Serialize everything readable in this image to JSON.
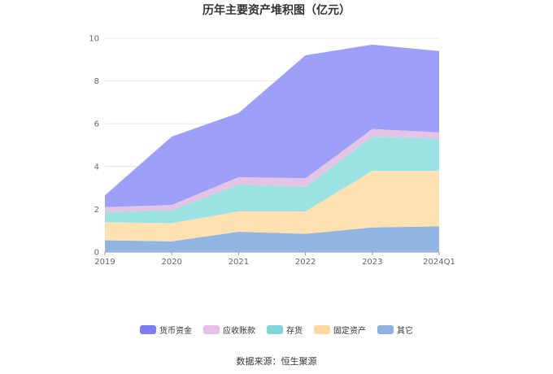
{
  "title": "历年主要资产堆积图（亿元）",
  "source": "数据来源：恒生聚源",
  "chart_data": {
    "type": "area",
    "stacked": true,
    "categories": [
      "2019",
      "2020",
      "2021",
      "2022",
      "2023",
      "2024Q1"
    ],
    "ylim": [
      0,
      10
    ],
    "yticks": [
      "0",
      "2",
      "4",
      "6",
      "8",
      "10"
    ],
    "grid": true,
    "legend_position": "bottom",
    "series": [
      {
        "name": "其它",
        "color": "#92b4e0",
        "values": [
          0.55,
          0.5,
          0.95,
          0.85,
          1.15,
          1.2
        ]
      },
      {
        "name": "固定资产",
        "color": "#fde1b1",
        "values": [
          0.85,
          0.85,
          0.95,
          1.05,
          2.65,
          2.6
        ]
      },
      {
        "name": "存货",
        "color": "#9be3e3",
        "values": [
          0.45,
          0.6,
          1.25,
          1.15,
          1.6,
          1.5
        ]
      },
      {
        "name": "应收账款",
        "color": "#e3c4e6",
        "values": [
          0.25,
          0.25,
          0.35,
          0.4,
          0.35,
          0.3
        ]
      },
      {
        "name": "货币资金",
        "color": "#9e9ff9",
        "values": [
          0.55,
          3.2,
          3.0,
          5.75,
          3.95,
          3.8
        ]
      }
    ]
  },
  "legend": [
    {
      "name": "货币资金",
      "color": "#7b7df0"
    },
    {
      "name": "应收账款",
      "color": "#e8bfe6"
    },
    {
      "name": "存货",
      "color": "#7fd6d6"
    },
    {
      "name": "固定资产",
      "color": "#fdd9a0"
    },
    {
      "name": "其它",
      "color": "#8fb0e0"
    }
  ]
}
